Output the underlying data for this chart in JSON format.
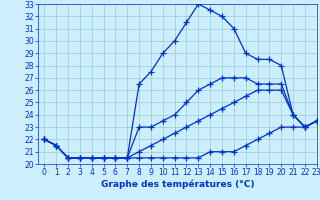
{
  "bg_color": "#cceeff",
  "grid_color": "#99cccc",
  "line_color": "#0033cc",
  "hours": [
    0,
    1,
    2,
    3,
    4,
    5,
    6,
    7,
    8,
    9,
    10,
    11,
    12,
    13,
    14,
    15,
    16,
    17,
    18,
    19,
    20,
    21,
    22,
    23
  ],
  "temp_max": [
    22,
    21.5,
    20.5,
    20.5,
    20.5,
    20.5,
    20.5,
    20.5,
    26.5,
    27.5,
    29,
    30,
    31.5,
    33,
    32.5,
    32,
    31,
    29,
    28.5,
    28.5,
    28,
    24,
    23,
    23.5
  ],
  "temp_mid": [
    22,
    21.5,
    20.5,
    20.5,
    20.5,
    20.5,
    20.5,
    20.5,
    23,
    23,
    23.5,
    24,
    25,
    26,
    26.5,
    27,
    27,
    27,
    26.5,
    26.5,
    26.5,
    24,
    23,
    23.5
  ],
  "temp_avg": [
    22,
    21.5,
    20.5,
    20.5,
    20.5,
    20.5,
    20.5,
    20.5,
    21,
    21.5,
    22,
    22.5,
    23,
    23.5,
    24,
    24.5,
    25,
    25.5,
    26,
    26,
    26,
    24,
    23,
    23.5
  ],
  "temp_min": [
    22,
    21.5,
    20.5,
    20.5,
    20.5,
    20.5,
    20.5,
    20.5,
    20.5,
    20.5,
    20.5,
    20.5,
    20.5,
    20.5,
    21,
    21,
    21,
    21.5,
    22,
    22.5,
    23,
    23,
    23,
    23.5
  ],
  "ylim": [
    20,
    33
  ],
  "yticks": [
    20,
    21,
    22,
    23,
    24,
    25,
    26,
    27,
    28,
    29,
    30,
    31,
    32,
    33
  ],
  "xlim": [
    -0.5,
    23
  ],
  "xticks": [
    0,
    1,
    2,
    3,
    4,
    5,
    6,
    7,
    8,
    9,
    10,
    11,
    12,
    13,
    14,
    15,
    16,
    17,
    18,
    19,
    20,
    21,
    22,
    23
  ],
  "xlabel": "Graphe des températures (°C)",
  "marker": "+",
  "markersize": 4,
  "linewidth": 0.9,
  "tick_fontsize": 5.5,
  "xlabel_fontsize": 6.5
}
